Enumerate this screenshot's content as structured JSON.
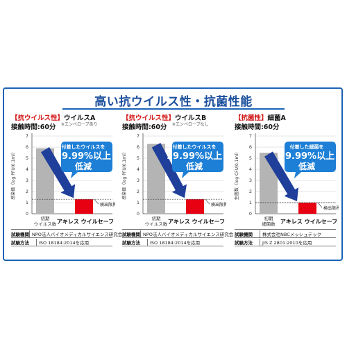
{
  "header": {
    "title": "高い抗ウイルス性・抗菌性能"
  },
  "colors": {
    "accent_blue": "#1b63b5",
    "arrow_blue": "#1f3f9a",
    "bubble_blue": "#1d7fd6",
    "bar_gray": "#b4b4b4",
    "bar_red": "#e60012"
  },
  "panels": [
    {
      "title_bracket": "【抗ウイルス性】",
      "title_label": "ウイルスA",
      "note": "※エンベロープあり",
      "contact": "接触時間:60分",
      "callout": {
        "line1": "付着したウイルスを",
        "line2": "99.99%以上",
        "line3": "低減"
      },
      "info": [
        {
          "k": "試験機関",
          "v": "NPO法人バイオメディカルサイエンス研究会"
        },
        {
          "k": "試験方法",
          "v": "ISO 18184:2014を応用"
        }
      ]
    },
    {
      "title_bracket": "【抗ウイルス性】",
      "title_label": "ウイルスB",
      "note": "※エンベロープなし",
      "contact": "接触時間:60分",
      "callout": {
        "line1": "付着したウイルスを",
        "line2": "99.99%以上",
        "line3": "低減"
      },
      "info": [
        {
          "k": "試験機関",
          "v": "NPO法人バイオメディカルサイエンス研究会"
        },
        {
          "k": "試験方法",
          "v": "ISO 18184:2014を応用"
        }
      ]
    },
    {
      "title_bracket": "【抗菌性】",
      "title_label": "細菌A",
      "note": "",
      "contact": "接触時間:60分",
      "callout": {
        "line1": "付着した細菌を",
        "line2": "99.99%以上",
        "line3": "低減"
      },
      "info": [
        {
          "k": "試験機関",
          "v": "株式会社NBCメッシュテック"
        },
        {
          "k": "試験方法",
          "v": "JIS Z 2801:2010を応用"
        }
      ]
    }
  ],
  "chart_data": [
    {
      "type": "bar",
      "title": "ウイルスA",
      "ylabel": "感染価（log PFU/0.1ml）",
      "ylim": [
        0,
        7
      ],
      "yticks": [
        "0",
        "1",
        "2",
        "3",
        "4",
        "5",
        "6",
        "7"
      ],
      "categories": [
        "初期\nウイルス数",
        "アキレス ウイルセーフ"
      ],
      "values": [
        5.9,
        1.3
      ],
      "detection_limit": {
        "value": 1.3,
        "label": "検出限界"
      },
      "grid": true
    },
    {
      "type": "bar",
      "title": "ウイルスB",
      "ylabel": "感染価（log PFU/0.1ml）",
      "ylim": [
        0,
        7
      ],
      "yticks": [
        "0",
        "1",
        "2",
        "3",
        "4",
        "5",
        "6",
        "7"
      ],
      "categories": [
        "初期\nウイルス数",
        "アキレス ウイルセーフ"
      ],
      "values": [
        6.3,
        1.3
      ],
      "detection_limit": {
        "value": 1.3,
        "label": "検出限界"
      },
      "grid": true
    },
    {
      "type": "bar",
      "title": "細菌A",
      "ylabel": "生菌数（log CFU/0.1ml）",
      "ylim": [
        0,
        7
      ],
      "yticks": [
        "0",
        "1",
        "2",
        "3",
        "4",
        "5",
        "6",
        "7"
      ],
      "categories": [
        "初期\n細菌数",
        "アキレス ウイルセーフ"
      ],
      "values": [
        5.5,
        1.0
      ],
      "detection_limit": {
        "value": 1.0,
        "label": "検出限界"
      },
      "grid": true
    }
  ]
}
